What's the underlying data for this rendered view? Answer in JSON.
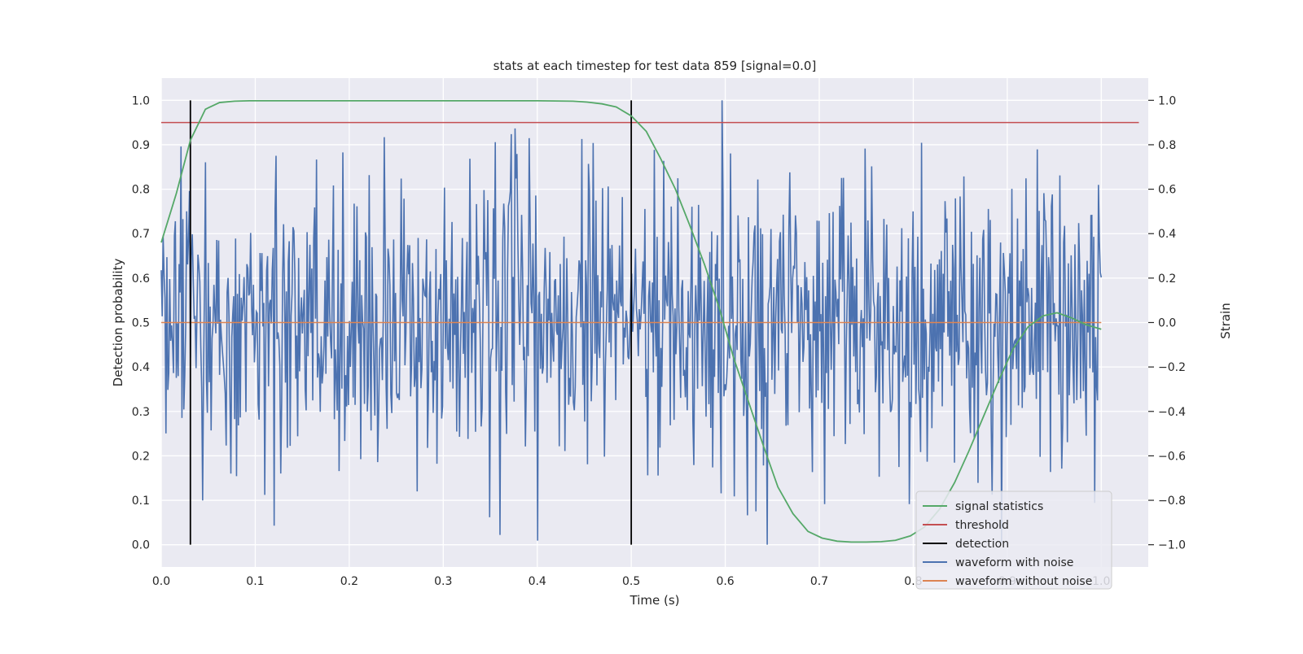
{
  "chart_data": {
    "type": "line",
    "title": "stats at each timestep for test data 859 [signal=0.0]",
    "xlabel": "Time (s)",
    "ylabel_left": "Detection probability",
    "ylabel_right": "Strain",
    "xlim": [
      0.0,
      1.05
    ],
    "ylim_left": [
      -0.05,
      1.05
    ],
    "ylim_right": [
      -1.1,
      1.1
    ],
    "x_ticks": [
      "0.0",
      "0.1",
      "0.2",
      "0.3",
      "0.4",
      "0.5",
      "0.6",
      "0.7",
      "0.8",
      "0.9",
      "1.0"
    ],
    "y_ticks_left": [
      "0.0",
      "0.1",
      "0.2",
      "0.3",
      "0.4",
      "0.5",
      "0.6",
      "0.7",
      "0.8",
      "0.9",
      "1.0"
    ],
    "y_ticks_right": [
      "−1.0",
      "−0.8",
      "−0.6",
      "−0.4",
      "−0.2",
      "0.0",
      "0.2",
      "0.4",
      "0.6",
      "0.8",
      "1.0"
    ],
    "grid": true,
    "legend_position": "lower-right",
    "series": [
      {
        "name": "signal statistics",
        "color": "#55a868",
        "axis": "left",
        "x": [
          0.0,
          0.016,
          0.031,
          0.047,
          0.062,
          0.078,
          0.094,
          0.109,
          0.2,
          0.3,
          0.4,
          0.438,
          0.453,
          0.469,
          0.484,
          0.5,
          0.516,
          0.531,
          0.547,
          0.562,
          0.578,
          0.594,
          0.609,
          0.625,
          0.641,
          0.656,
          0.672,
          0.688,
          0.703,
          0.719,
          0.734,
          0.75,
          0.766,
          0.781,
          0.797,
          0.812,
          0.828,
          0.844,
          0.859,
          0.875,
          0.891,
          0.906,
          0.922,
          0.938,
          0.953,
          0.969,
          0.984,
          1.0
        ],
        "y": [
          0.68,
          0.79,
          0.91,
          0.98,
          0.995,
          0.998,
          0.999,
          0.999,
          0.999,
          0.999,
          0.999,
          0.998,
          0.996,
          0.992,
          0.985,
          0.965,
          0.93,
          0.87,
          0.8,
          0.72,
          0.63,
          0.53,
          0.42,
          0.32,
          0.22,
          0.13,
          0.07,
          0.03,
          0.015,
          0.008,
          0.006,
          0.006,
          0.007,
          0.01,
          0.02,
          0.04,
          0.08,
          0.14,
          0.21,
          0.29,
          0.37,
          0.44,
          0.49,
          0.515,
          0.522,
          0.51,
          0.495,
          0.485
        ]
      },
      {
        "name": "threshold",
        "color": "#c44e52",
        "axis": "left",
        "x": [
          0.0,
          1.04
        ],
        "y": [
          0.95,
          0.95
        ]
      },
      {
        "name": "detection",
        "color": "#000000",
        "axis": "left",
        "type": "vlines",
        "x": [
          0.031,
          0.5
        ],
        "y": [
          0.0,
          1.0
        ]
      },
      {
        "name": "waveform with noise",
        "color": "#4c72b0",
        "axis": "right",
        "x_start": 0.0,
        "x_end": 1.0,
        "y_min": -1.0,
        "y_max": 1.0,
        "n_points": 1000,
        "std": 0.33
      },
      {
        "name": "waveform without noise",
        "color": "#dd8452",
        "axis": "right",
        "x": [
          0.0,
          1.0
        ],
        "y": [
          0.0,
          0.0
        ]
      }
    ]
  }
}
